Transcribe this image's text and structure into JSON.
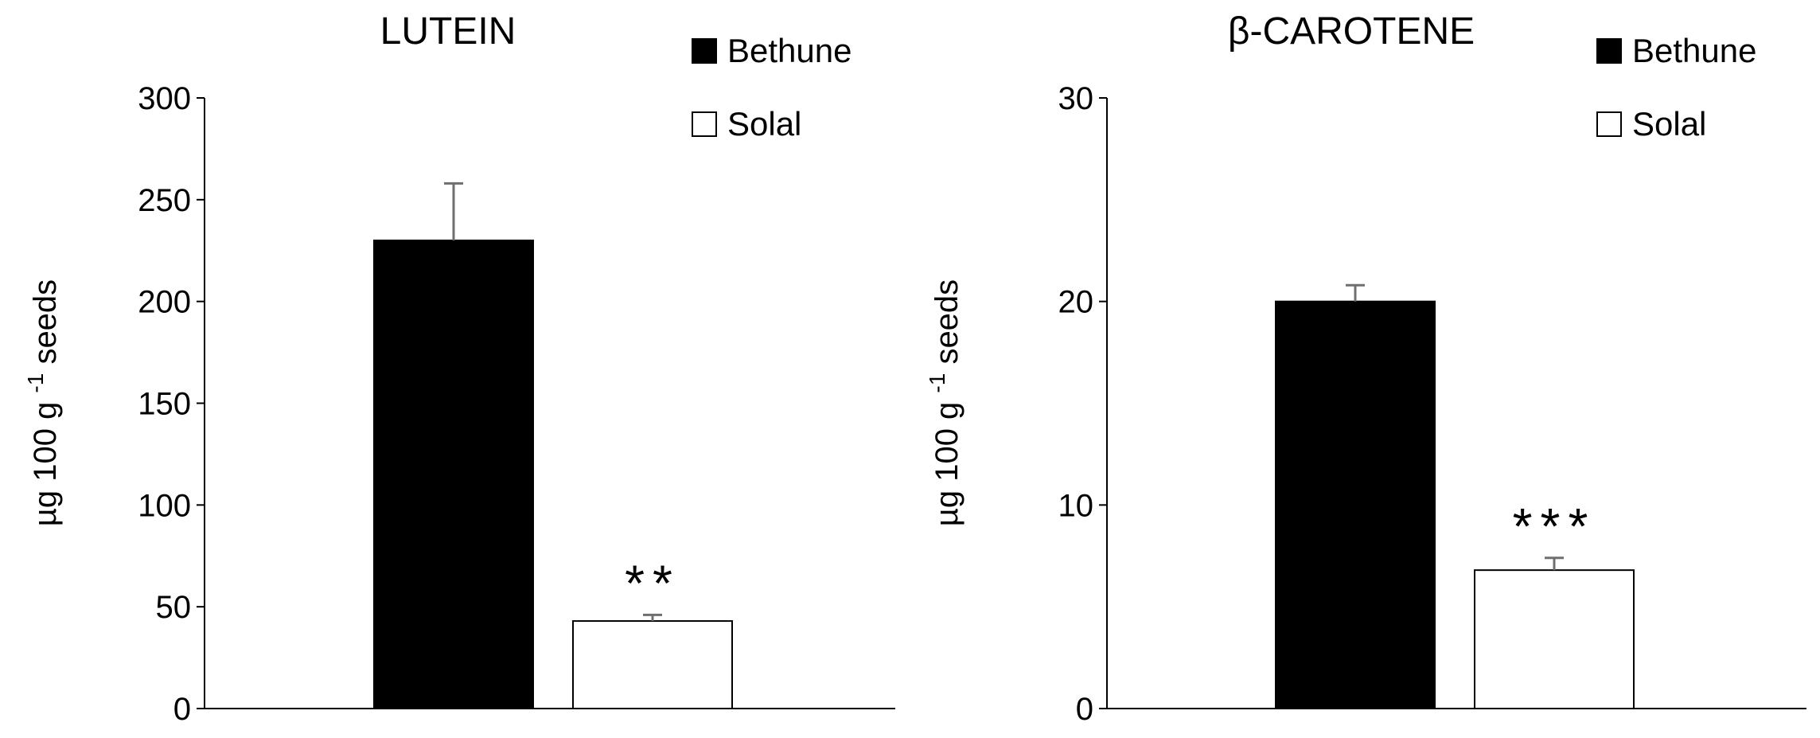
{
  "chart_data": [
    {
      "type": "bar",
      "title": "LUTEIN",
      "ylabel_prefix": "µg  100 g",
      "ylabel_superscript": "-1",
      "ylabel_suffix": " seeds",
      "ylim": [
        0,
        300
      ],
      "yticks": [
        0,
        50,
        100,
        150,
        200,
        250,
        300
      ],
      "grid": false,
      "legend_position": "top-right",
      "series": [
        {
          "name": "Bethune",
          "value": 230,
          "error": 28,
          "fill": "#000000",
          "significance": ""
        },
        {
          "name": "Solal",
          "value": 43,
          "error": 3,
          "fill": "#ffffff",
          "significance": "**"
        }
      ]
    },
    {
      "type": "bar",
      "title": "β-CAROTENE",
      "ylabel_prefix": "µg  100 g",
      "ylabel_superscript": "-1",
      "ylabel_suffix": " seeds",
      "ylim": [
        0,
        30
      ],
      "yticks": [
        0,
        10,
        20,
        30
      ],
      "grid": false,
      "legend_position": "top-right",
      "series": [
        {
          "name": "Bethune",
          "value": 20,
          "error": 0.8,
          "fill": "#000000",
          "significance": ""
        },
        {
          "name": "Solal",
          "value": 6.8,
          "error": 0.6,
          "fill": "#ffffff",
          "significance": "***"
        }
      ]
    }
  ]
}
